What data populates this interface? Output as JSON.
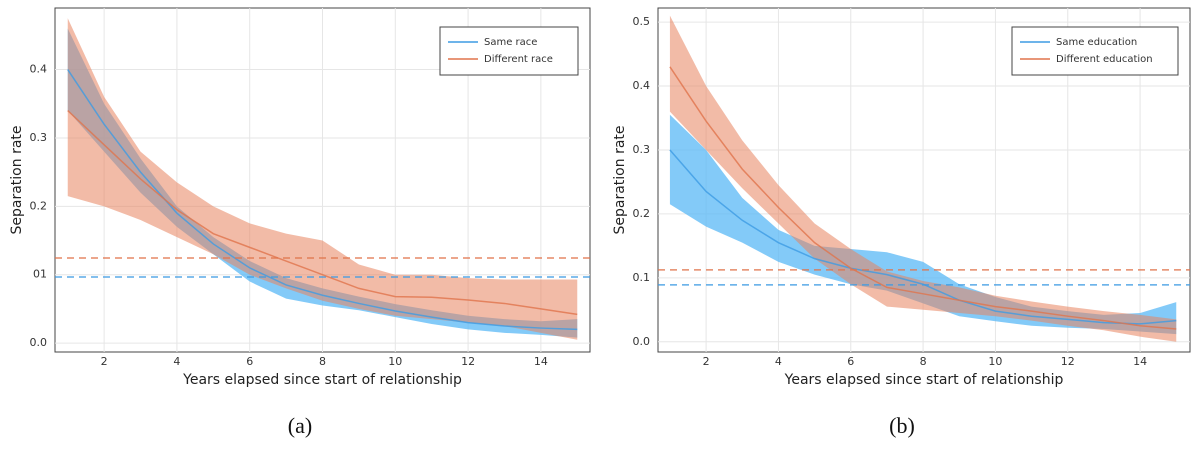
{
  "chart_data": [
    {
      "type": "line",
      "caption": "(a)",
      "xlabel": "Years elapsed since start of relationship",
      "ylabel": "Separation rate",
      "x": [
        1,
        2,
        3,
        4,
        5,
        6,
        7,
        8,
        9,
        10,
        11,
        12,
        13,
        14,
        15
      ],
      "xlim": [
        0.65,
        15.35
      ],
      "ylim": [
        -0.013,
        0.49
      ],
      "xticks": [
        2,
        4,
        6,
        8,
        10,
        12,
        14
      ],
      "yticks": [
        {
          "value": 0,
          "label": "0.0"
        },
        {
          "value": 0.1,
          "label": "01"
        },
        0.2,
        0.3,
        0.4
      ],
      "grid": true,
      "legend": "top-right",
      "series": [
        {
          "name": "Same race",
          "color": "#3d9be3",
          "band_color": "#5ab8f6",
          "reference": 0.0967,
          "values": [
            0.4,
            0.32,
            0.25,
            0.19,
            0.145,
            0.11,
            0.085,
            0.07,
            0.058,
            0.047,
            0.038,
            0.03,
            0.025,
            0.022,
            0.02
          ],
          "lower": [
            0.34,
            0.28,
            0.22,
            0.17,
            0.13,
            0.09,
            0.065,
            0.055,
            0.048,
            0.038,
            0.028,
            0.02,
            0.015,
            0.012,
            0.008
          ],
          "upper": [
            0.46,
            0.35,
            0.27,
            0.2,
            0.155,
            0.12,
            0.095,
            0.08,
            0.068,
            0.057,
            0.048,
            0.04,
            0.035,
            0.032,
            0.035
          ]
        },
        {
          "name": "Different race",
          "color": "#e0744c",
          "band_color": "#e8835e",
          "reference": 0.1245,
          "values": [
            0.34,
            0.29,
            0.24,
            0.195,
            0.16,
            0.14,
            0.12,
            0.1,
            0.08,
            0.068,
            0.067,
            0.063,
            0.058,
            0.05,
            0.042
          ],
          "lower": [
            0.215,
            0.2,
            0.18,
            0.155,
            0.13,
            0.1,
            0.08,
            0.062,
            0.05,
            0.04,
            0.035,
            0.03,
            0.025,
            0.015,
            0.005
          ],
          "upper": [
            0.475,
            0.36,
            0.28,
            0.235,
            0.2,
            0.175,
            0.16,
            0.15,
            0.115,
            0.1,
            0.1,
            0.095,
            0.093,
            0.093,
            0.093
          ]
        }
      ]
    },
    {
      "type": "line",
      "caption": "(b)",
      "xlabel": "Years elapsed since start of relationship",
      "ylabel": "Separation rate",
      "x": [
        1,
        2,
        3,
        4,
        5,
        6,
        7,
        8,
        9,
        10,
        11,
        12,
        13,
        14,
        15
      ],
      "xlim": [
        0.67,
        15.38
      ],
      "ylim": [
        -0.016,
        0.522
      ],
      "xticks": [
        2,
        4,
        6,
        8,
        10,
        12,
        14
      ],
      "yticks": [
        {
          "value": 0,
          "label": "0.0"
        },
        0.1,
        0.2,
        0.3,
        0.4,
        0.5
      ],
      "grid": true,
      "legend": "top-right",
      "series": [
        {
          "name": "Same education",
          "color": "#3d9be3",
          "band_color": "#5ab8f6",
          "reference": 0.089,
          "values": [
            0.3,
            0.235,
            0.19,
            0.155,
            0.13,
            0.115,
            0.105,
            0.09,
            0.065,
            0.048,
            0.04,
            0.035,
            0.03,
            0.028,
            0.033
          ],
          "lower": [
            0.215,
            0.18,
            0.155,
            0.125,
            0.105,
            0.09,
            0.08,
            0.06,
            0.04,
            0.032,
            0.025,
            0.022,
            0.02,
            0.016,
            0.012
          ],
          "upper": [
            0.355,
            0.3,
            0.225,
            0.175,
            0.15,
            0.145,
            0.14,
            0.125,
            0.09,
            0.07,
            0.055,
            0.048,
            0.042,
            0.045,
            0.062
          ]
        },
        {
          "name": "Different education",
          "color": "#e0744c",
          "band_color": "#e8835e",
          "reference": 0.1125,
          "values": [
            0.43,
            0.345,
            0.27,
            0.21,
            0.155,
            0.115,
            0.085,
            0.075,
            0.065,
            0.055,
            0.048,
            0.04,
            0.033,
            0.025,
            0.02
          ],
          "lower": [
            0.36,
            0.3,
            0.24,
            0.185,
            0.13,
            0.09,
            0.055,
            0.05,
            0.045,
            0.04,
            0.033,
            0.025,
            0.018,
            0.008,
            0.0
          ],
          "upper": [
            0.51,
            0.4,
            0.315,
            0.245,
            0.185,
            0.145,
            0.11,
            0.095,
            0.085,
            0.072,
            0.063,
            0.055,
            0.048,
            0.042,
            0.035
          ]
        }
      ]
    }
  ]
}
